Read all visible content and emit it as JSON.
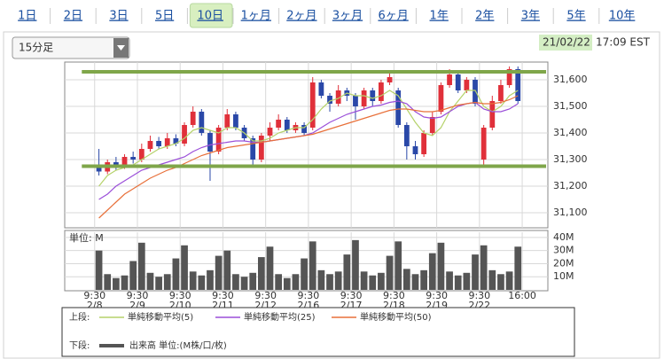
{
  "tabs": {
    "items": [
      "1日",
      "2日",
      "3日",
      "5日",
      "10日",
      "1ヶ月",
      "2ヶ月",
      "3ヶ月",
      "6ヶ月",
      "1年",
      "2年",
      "3年",
      "5年",
      "10年"
    ],
    "selected": 4
  },
  "dropdown": "15分足",
  "timestamp": {
    "date": "21/02/22",
    "time": "17:09 EST"
  },
  "legend": {
    "upper_label": "上段:",
    "lower_label": "下段:"
  },
  "chart_data": [
    {
      "type": "candlestick",
      "xlim": [
        -3.5,
        53
      ],
      "ylim": [
        31050,
        31660
      ],
      "yticks": [
        {
          "value": 31100,
          "label": "31,100"
        },
        {
          "value": 31200,
          "label": "31,200"
        },
        {
          "value": 31300,
          "label": "31,300"
        },
        {
          "value": 31400,
          "label": "31,400"
        },
        {
          "value": 31500,
          "label": "31,500"
        },
        {
          "value": 31600,
          "label": "31,600"
        }
      ],
      "grid": true,
      "up_color": "#e0303a",
      "down_color": "#2a48a8",
      "open": [
        31280,
        31255,
        31290,
        31275,
        31310,
        31300,
        31340,
        31370,
        31350,
        31380,
        31360,
        31430,
        31480,
        31400,
        31330,
        31420,
        31470,
        31420,
        31380,
        31300,
        31390,
        31420,
        31450,
        31410,
        31430,
        31420,
        31590,
        31540,
        31510,
        31560,
        31540,
        31500,
        31560,
        31520,
        31590,
        31560,
        31430,
        31350,
        31320,
        31400,
        31480,
        31580,
        31620,
        31560,
        31600,
        31300,
        31420,
        31520,
        31580,
        31640
      ],
      "high": [
        31340,
        31300,
        31310,
        31320,
        31330,
        31360,
        31390,
        31385,
        31400,
        31395,
        31440,
        31500,
        31490,
        31410,
        31430,
        31490,
        31480,
        31430,
        31390,
        31400,
        31440,
        31470,
        31460,
        31440,
        31440,
        31610,
        31600,
        31550,
        31580,
        31570,
        31550,
        31570,
        31570,
        31600,
        31630,
        31570,
        31440,
        31370,
        31410,
        31480,
        31590,
        31640,
        31630,
        31610,
        31610,
        31430,
        31540,
        31600,
        31650,
        31650
      ],
      "low": [
        31240,
        31245,
        31260,
        31265,
        31285,
        31290,
        31330,
        31340,
        31340,
        31350,
        31350,
        31420,
        31390,
        31220,
        31320,
        31410,
        31410,
        31370,
        31280,
        31290,
        31370,
        31410,
        31400,
        31400,
        31390,
        31410,
        31530,
        31480,
        31500,
        31520,
        31450,
        31490,
        31500,
        31510,
        31580,
        31420,
        31300,
        31300,
        31310,
        31390,
        31470,
        31570,
        31550,
        31550,
        31500,
        31280,
        31410,
        31510,
        31570,
        31510
      ],
      "close": [
        31255,
        31290,
        31275,
        31310,
        31300,
        31340,
        31370,
        31350,
        31380,
        31360,
        31430,
        31480,
        31400,
        31330,
        31420,
        31470,
        31420,
        31380,
        31300,
        31390,
        31420,
        31450,
        31410,
        31430,
        31400,
        31590,
        31540,
        31510,
        31560,
        31540,
        31500,
        31560,
        31520,
        31590,
        31610,
        31430,
        31350,
        31320,
        31400,
        31460,
        31580,
        31620,
        31560,
        31600,
        31510,
        31420,
        31520,
        31580,
        31640,
        31520
      ],
      "series": [
        {
          "name": "単純移動平均(5)",
          "color": "#b5d26a",
          "values": [
            31200,
            31240,
            31260,
            31270,
            31280,
            31300,
            31320,
            31340,
            31350,
            31360,
            31380,
            31410,
            31420,
            31410,
            31400,
            31420,
            31420,
            31400,
            31370,
            31370,
            31380,
            31400,
            31410,
            31420,
            31420,
            31450,
            31490,
            31520,
            31530,
            31550,
            31540,
            31540,
            31530,
            31540,
            31560,
            31540,
            31490,
            31440,
            31400,
            31390,
            31420,
            31480,
            31520,
            31560,
            31560,
            31500,
            31480,
            31500,
            31540,
            31560
          ]
        },
        {
          "name": "単純移動平均(25)",
          "color": "#9b4fd9",
          "values": [
            31150,
            31170,
            31200,
            31220,
            31240,
            31260,
            31270,
            31280,
            31290,
            31300,
            31310,
            31330,
            31345,
            31355,
            31360,
            31365,
            31370,
            31370,
            31365,
            31365,
            31370,
            31375,
            31380,
            31385,
            31390,
            31400,
            31420,
            31440,
            31455,
            31470,
            31480,
            31490,
            31500,
            31505,
            31515,
            31520,
            31510,
            31480,
            31460,
            31455,
            31460,
            31480,
            31500,
            31510,
            31515,
            31490,
            31480,
            31480,
            31490,
            31510
          ]
        },
        {
          "name": "単純移動平均(50)",
          "color": "#e8703a",
          "values": [
            31080,
            31110,
            31140,
            31170,
            31190,
            31210,
            31230,
            31245,
            31260,
            31270,
            31285,
            31300,
            31315,
            31325,
            31335,
            31345,
            31350,
            31355,
            31360,
            31365,
            31370,
            31375,
            31380,
            31385,
            31390,
            31395,
            31405,
            31415,
            31425,
            31435,
            31445,
            31455,
            31465,
            31475,
            31485,
            31490,
            31490,
            31485,
            31480,
            31480,
            31485,
            31495,
            31505,
            31510,
            31515,
            31510,
            31510,
            31515,
            31525,
            31540
          ]
        }
      ],
      "hlines": [
        31630,
        31275
      ],
      "hline_color": "#7fa64a"
    },
    {
      "type": "bar",
      "unit_label": "単位: M",
      "xlim": [
        -3.5,
        53
      ],
      "xticks": [
        {
          "value": 0,
          "label": [
            "9:30",
            "2/8"
          ]
        },
        {
          "value": 5,
          "label": [
            "9:30",
            "2/9"
          ]
        },
        {
          "value": 10,
          "label": [
            "9:30",
            "2/10"
          ]
        },
        {
          "value": 15,
          "label": [
            "9:30",
            "2/11"
          ]
        },
        {
          "value": 20,
          "label": [
            "9:30",
            "2/12"
          ]
        },
        {
          "value": 25,
          "label": [
            "9:30",
            "2/16"
          ]
        },
        {
          "value": 30,
          "label": [
            "9:30",
            "2/17"
          ]
        },
        {
          "value": 35,
          "label": [
            "9:30",
            "2/18"
          ]
        },
        {
          "value": 40,
          "label": [
            "9:30",
            "2/19"
          ]
        },
        {
          "value": 45,
          "label": [
            "9:30",
            "2/22"
          ]
        },
        {
          "value": 50,
          "label": [
            "16:00"
          ]
        }
      ],
      "ylim": [
        0,
        44
      ],
      "yticks": [
        {
          "value": 10,
          "label": "10M"
        },
        {
          "value": 20,
          "label": "20M"
        },
        {
          "value": 30,
          "label": "30M"
        },
        {
          "value": 40,
          "label": "40M"
        }
      ],
      "grid": true,
      "series": [
        {
          "name": "出来高 単位:(M株/口/枚)",
          "color": "#555555",
          "values": [
            30,
            12,
            9,
            11,
            22,
            36,
            13,
            10,
            12,
            24,
            34,
            14,
            11,
            15,
            26,
            30,
            12,
            10,
            13,
            25,
            33,
            12,
            9,
            12,
            24,
            37,
            15,
            12,
            14,
            27,
            38,
            14,
            11,
            13,
            26,
            37,
            16,
            12,
            15,
            28,
            36,
            14,
            11,
            13,
            27,
            34,
            15,
            12,
            14,
            33
          ]
        }
      ]
    }
  ]
}
